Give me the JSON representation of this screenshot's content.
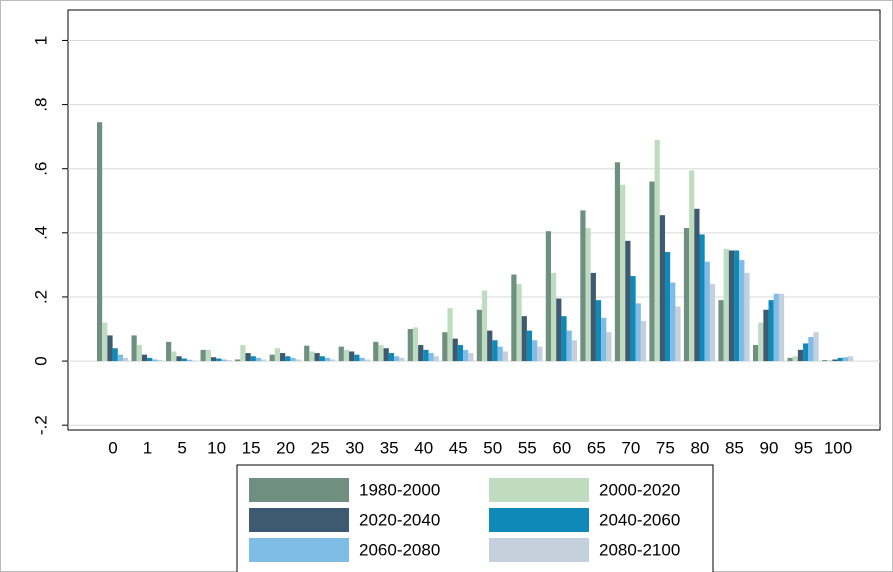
{
  "chart_data": {
    "type": "bar",
    "categories": [
      "0",
      "1",
      "5",
      "10",
      "15",
      "20",
      "25",
      "30",
      "35",
      "40",
      "45",
      "50",
      "55",
      "60",
      "65",
      "70",
      "75",
      "80",
      "85",
      "90",
      "95",
      "100"
    ],
    "series": [
      {
        "name": "1980-2000",
        "color": "#6f8f80",
        "values": [
          0.745,
          0.08,
          0.06,
          0.035,
          0.005,
          0.02,
          0.048,
          0.045,
          0.06,
          0.1,
          0.09,
          0.16,
          0.27,
          0.405,
          0.47,
          0.62,
          0.56,
          0.415,
          0.19,
          0.05,
          0.01,
          0.003
        ]
      },
      {
        "name": "2000-2020",
        "color": "#bfdcc0",
        "values": [
          0.12,
          0.05,
          0.03,
          0.035,
          0.05,
          0.04,
          0.03,
          0.035,
          0.05,
          0.105,
          0.165,
          0.22,
          0.24,
          0.275,
          0.415,
          0.55,
          0.69,
          0.595,
          0.35,
          0.12,
          0.015,
          0.003
        ]
      },
      {
        "name": "2020-2040",
        "color": "#3e5a70",
        "values": [
          0.08,
          0.02,
          0.015,
          0.012,
          0.025,
          0.025,
          0.025,
          0.03,
          0.04,
          0.05,
          0.07,
          0.095,
          0.14,
          0.195,
          0.275,
          0.375,
          0.455,
          0.475,
          0.345,
          0.16,
          0.035,
          0.005
        ]
      },
      {
        "name": "2040-2060",
        "color": "#0f8ab8",
        "values": [
          0.04,
          0.01,
          0.008,
          0.008,
          0.015,
          0.015,
          0.015,
          0.02,
          0.025,
          0.035,
          0.05,
          0.065,
          0.095,
          0.14,
          0.19,
          0.265,
          0.34,
          0.395,
          0.345,
          0.19,
          0.055,
          0.01
        ]
      },
      {
        "name": "2060-2080",
        "color": "#80bde6",
        "values": [
          0.02,
          0.005,
          0.004,
          0.005,
          0.01,
          0.01,
          0.01,
          0.01,
          0.015,
          0.025,
          0.035,
          0.045,
          0.065,
          0.095,
          0.135,
          0.18,
          0.245,
          0.31,
          0.315,
          0.21,
          0.075,
          0.012
        ]
      },
      {
        "name": "2080-2100",
        "color": "#c4d0dc",
        "values": [
          0.01,
          0.003,
          0.002,
          0.003,
          0.005,
          0.005,
          0.005,
          0.005,
          0.01,
          0.015,
          0.025,
          0.03,
          0.045,
          0.065,
          0.09,
          0.125,
          0.17,
          0.24,
          0.275,
          0.21,
          0.09,
          0.015
        ]
      }
    ],
    "ylim": [
      -0.215,
      1.095
    ],
    "yticks": [
      {
        "value": -0.2,
        "label": "-.2"
      },
      0,
      {
        "value": 0.2,
        "label": ".2"
      },
      {
        "value": 0.4,
        "label": ".4"
      },
      {
        "value": 0.6,
        "label": ".6"
      },
      {
        "value": 0.8,
        "label": ".8"
      },
      1
    ],
    "grid": true
  }
}
